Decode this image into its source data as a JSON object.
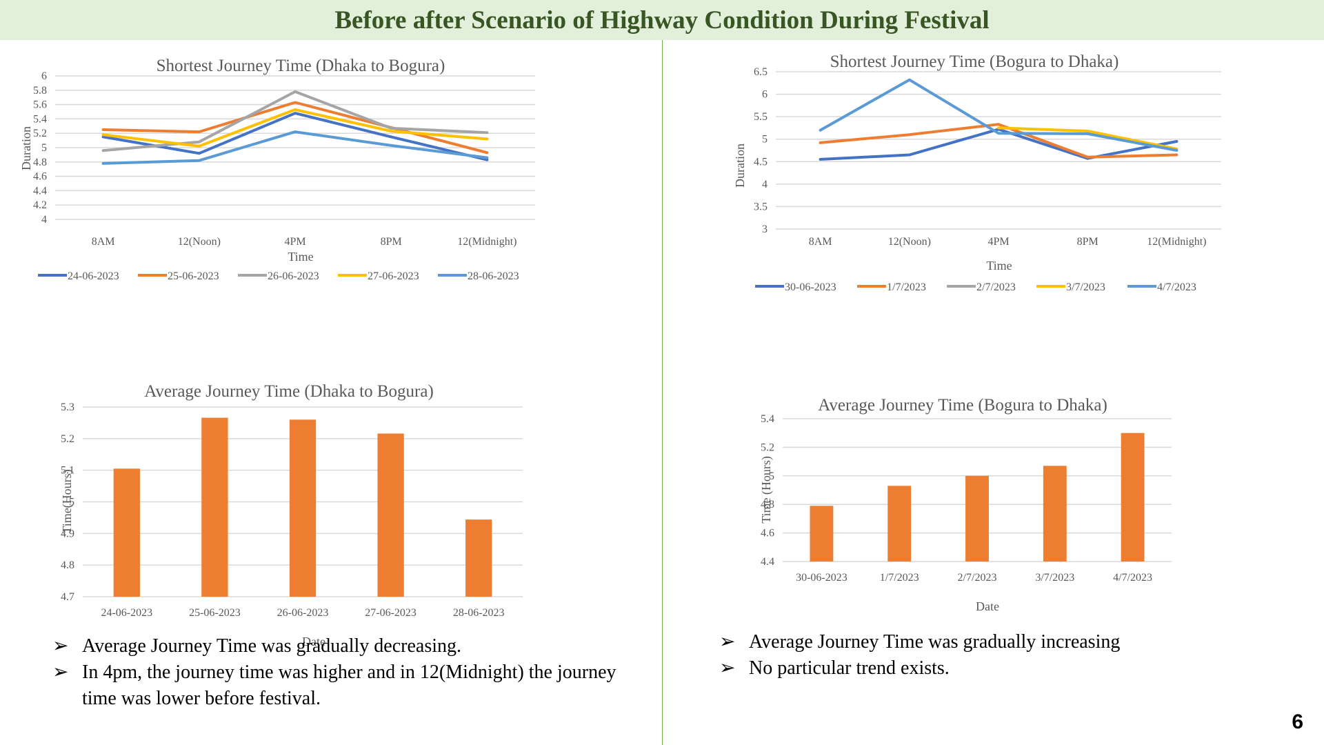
{
  "title": "Before after Scenario of Highway Condition During Festival",
  "page_number": "6",
  "bullet_glyph": "➢",
  "left_bullets": [
    "Average Journey Time was gradually decreasing.",
    "In 4pm, the journey time was higher and in 12(Midnight) the journey time was lower before festival."
  ],
  "right_bullets": [
    "Average Journey Time was gradually increasing",
    "No particular trend exists."
  ],
  "chart_data": [
    {
      "id": "shortest-dhaka-bogura",
      "type": "line",
      "title": "Shortest Journey Time (Dhaka to Bogura)",
      "xlabel": "Time",
      "ylabel": "Duration",
      "categories": [
        "8AM",
        "12(Noon)",
        "4PM",
        "8PM",
        "12(Midnight)"
      ],
      "ylim": [
        4,
        6
      ],
      "yticks": [
        "4",
        "4.2",
        "4.4",
        "4.6",
        "4.8",
        "5",
        "5.2",
        "5.4",
        "5.6",
        "5.8",
        "6"
      ],
      "grid": true,
      "legend": "bottom",
      "series": [
        {
          "name": "24-06-2023",
          "color": "#4472c4",
          "values": [
            5.15,
            4.92,
            5.48,
            5.15,
            4.83
          ]
        },
        {
          "name": "25-06-2023",
          "color": "#ed7d31",
          "values": [
            5.25,
            5.22,
            5.63,
            5.28,
            4.93
          ]
        },
        {
          "name": "26-06-2023",
          "color": "#a5a5a5",
          "values": [
            4.96,
            5.08,
            5.78,
            5.27,
            5.21
          ]
        },
        {
          "name": "27-06-2023",
          "color": "#ffc000",
          "values": [
            5.18,
            5.02,
            5.53,
            5.23,
            5.12
          ]
        },
        {
          "name": "28-06-2023",
          "color": "#5b9bd5",
          "values": [
            4.78,
            4.82,
            5.22,
            5.03,
            4.86
          ]
        }
      ]
    },
    {
      "id": "shortest-bogura-dhaka",
      "type": "line",
      "title": "Shortest Journey Time (Bogura to Dhaka)",
      "xlabel": "Time",
      "ylabel": "Duration",
      "categories": [
        "8AM",
        "12(Noon)",
        "4PM",
        "8PM",
        "12(Midnight)"
      ],
      "ylim": [
        3,
        6.5
      ],
      "yticks": [
        "3",
        "3.5",
        "4",
        "4.5",
        "5",
        "5.5",
        "6",
        "6.5"
      ],
      "grid": true,
      "legend": "bottom",
      "series": [
        {
          "name": "30-06-2023",
          "color": "#4472c4",
          "values": [
            4.55,
            4.65,
            5.22,
            4.57,
            4.95
          ]
        },
        {
          "name": "1/7/2023",
          "color": "#ed7d31",
          "values": [
            4.92,
            5.1,
            5.33,
            4.6,
            4.65
          ]
        },
        {
          "name": "2/7/2023",
          "color": "#a5a5a5",
          "values": [
            null,
            null,
            null,
            null,
            null
          ]
        },
        {
          "name": "3/7/2023",
          "color": "#ffc000",
          "values": [
            null,
            null,
            5.25,
            5.18,
            4.78
          ]
        },
        {
          "name": "4/7/2023",
          "color": "#5b9bd5",
          "values": [
            5.2,
            6.32,
            5.13,
            5.12,
            4.75
          ]
        }
      ]
    },
    {
      "id": "average-dhaka-bogura",
      "type": "bar",
      "title": "Average Journey Time (Dhaka to Bogura)",
      "xlabel": "Date",
      "ylabel": "Time(Hours)",
      "categories": [
        "24-06-2023",
        "25-06-2023",
        "26-06-2023",
        "27-06-2023",
        "28-06-2023"
      ],
      "values": [
        5.105,
        5.266,
        5.26,
        5.216,
        4.944
      ],
      "ylim": [
        4.7,
        5.3
      ],
      "yticks": [
        "4.7",
        "4.8",
        "4.9",
        "5",
        "5.1",
        "5.2",
        "5.3"
      ],
      "grid": true,
      "color": "#ed7d31"
    },
    {
      "id": "average-bogura-dhaka",
      "type": "bar",
      "title": "Average Journey Time (Bogura to Dhaka)",
      "xlabel": "Date",
      "ylabel": "Time (Hours)",
      "categories": [
        "30-06-2023",
        "1/7/2023",
        "2/7/2023",
        "3/7/2023",
        "4/7/2023"
      ],
      "values": [
        4.79,
        4.93,
        5.0,
        5.07,
        5.3
      ],
      "ylim": [
        4.4,
        5.4
      ],
      "yticks": [
        "4.4",
        "4.6",
        "4.8",
        "5",
        "5.2",
        "5.4"
      ],
      "grid": true,
      "color": "#ed7d31"
    }
  ]
}
